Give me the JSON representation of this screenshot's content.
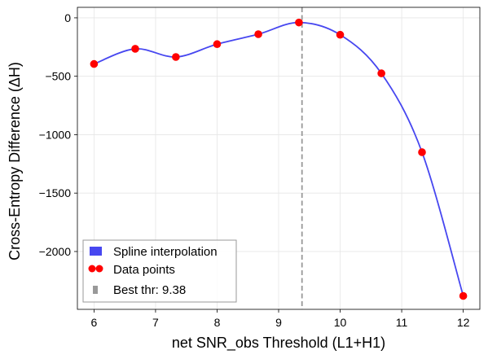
{
  "chart_data": {
    "type": "line",
    "xlabel": "net SNR_obs Threshold (L1+H1)",
    "ylabel": "Cross-Entropy Difference (ΔH)",
    "xlim": [
      5.73,
      12.27
    ],
    "ylim": [
      -2495,
      90
    ],
    "xticks": [
      6,
      7,
      8,
      9,
      10,
      11,
      12
    ],
    "yticks": [
      0,
      -500,
      -1000,
      -1500,
      -2000
    ],
    "ytick_labels": [
      "0",
      "−500",
      "−1000",
      "−1500",
      "−2000"
    ],
    "grid": true,
    "legend_position": "lower left",
    "series": [
      {
        "name": "Spline interpolation",
        "kind": "line",
        "color": "#4747f0",
        "x": [
          6.0,
          6.67,
          7.33,
          8.0,
          8.67,
          9.33,
          10.0,
          10.67,
          11.33,
          12.0
        ],
        "y": [
          -395,
          -265,
          -335,
          -225,
          -140,
          -40,
          -145,
          -475,
          -1150,
          -2380
        ]
      },
      {
        "name": "Data points",
        "kind": "scatter",
        "color": "#ff0000",
        "x": [
          6.0,
          6.67,
          7.33,
          8.0,
          8.67,
          9.33,
          10.0,
          10.67,
          11.33,
          12.0
        ],
        "y": [
          -395,
          -265,
          -335,
          -225,
          -140,
          -40,
          -145,
          -475,
          -1150,
          -2380
        ]
      },
      {
        "name": "Best thr: 9.38",
        "kind": "vline",
        "color": "#999999",
        "x": 9.38
      }
    ]
  }
}
